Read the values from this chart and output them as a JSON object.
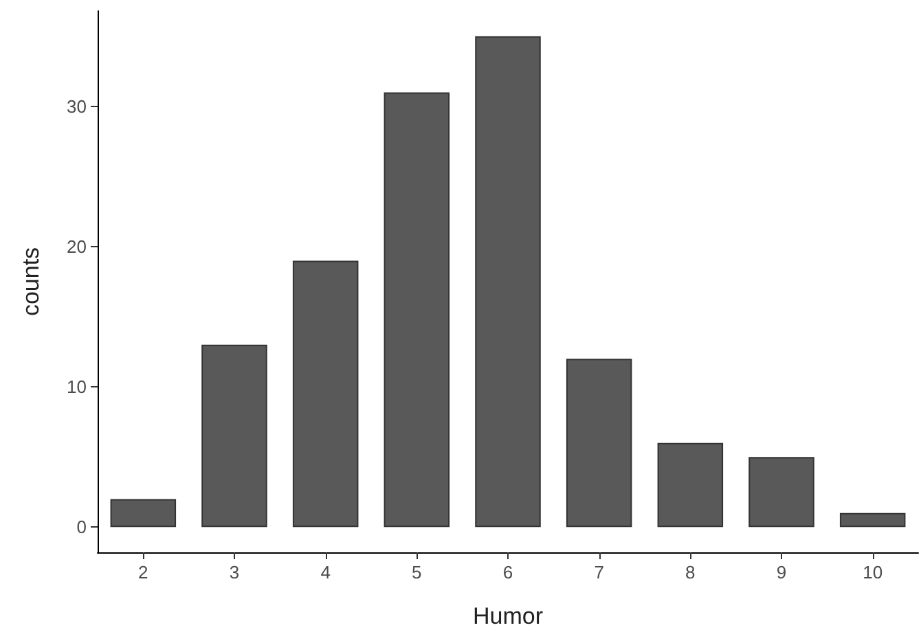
{
  "chart_data": {
    "type": "bar",
    "xlabel": "Humor",
    "ylabel": "counts",
    "categories": [
      "2",
      "3",
      "4",
      "5",
      "6",
      "7",
      "8",
      "9",
      "10"
    ],
    "values": [
      2,
      13,
      19,
      31,
      35,
      12,
      6,
      5,
      1
    ],
    "color": "#595959",
    "ylim": [
      -1.8,
      36.8
    ],
    "yticks": [
      0,
      10,
      20,
      30
    ],
    "grid": false
  }
}
